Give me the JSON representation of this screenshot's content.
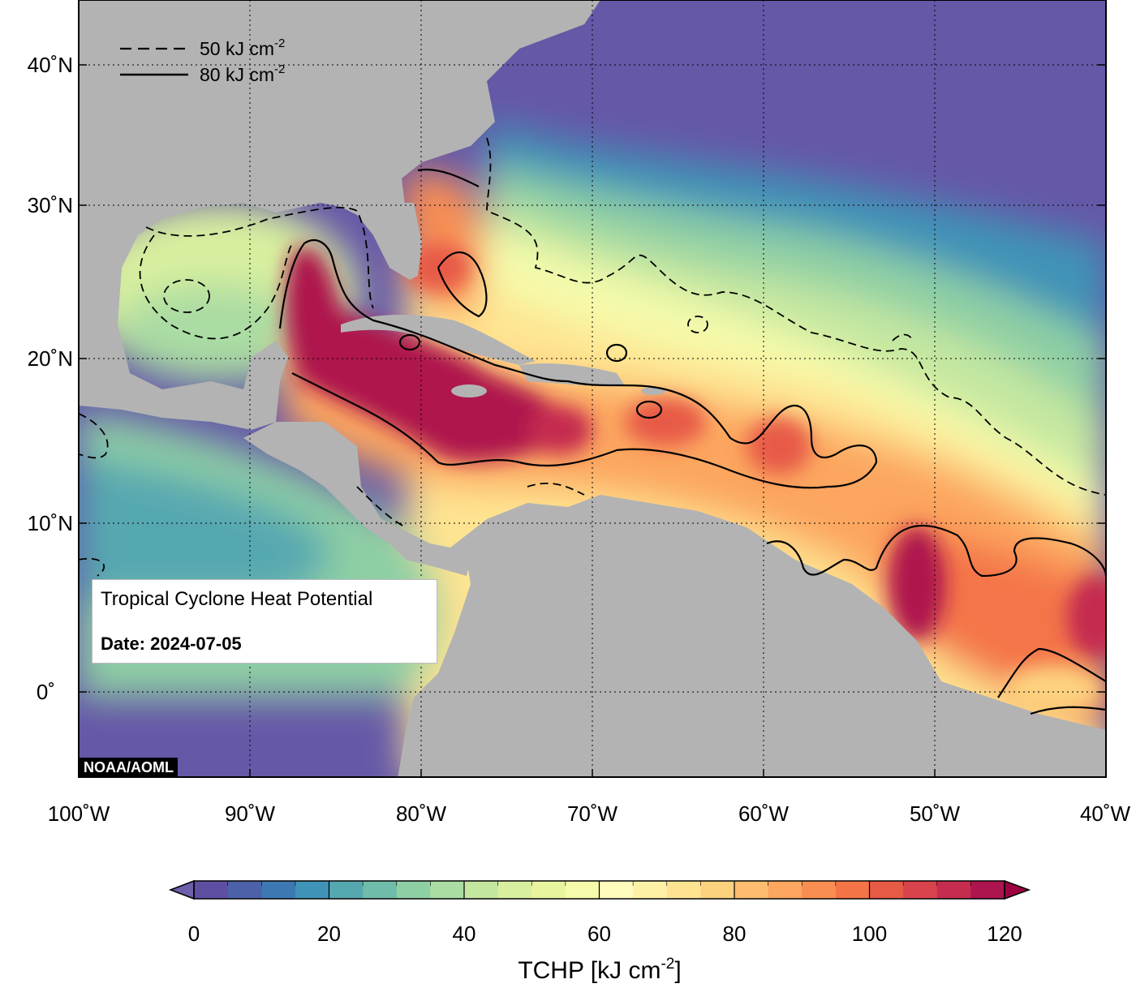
{
  "title": "Tropical Cyclone Heat Potential",
  "date_label": "Date: 2024-07-05",
  "credit": "NOAA/AOML",
  "legend": {
    "dashed_label": "50 kJ cm",
    "dashed_exp": "-2",
    "solid_label": "80 kJ cm",
    "solid_exp": "-2"
  },
  "lat_labels": [
    "40˚N",
    "30˚N",
    "20˚N",
    "10˚N",
    "0˚"
  ],
  "lon_labels": [
    "100˚W",
    "90˚W",
    "80˚W",
    "70˚W",
    "60˚W",
    "50˚W",
    "40˚W"
  ],
  "colorbar": {
    "title_prefix": "TCHP [kJ cm",
    "title_exp": "-2",
    "title_suffix": "]",
    "ticks": [
      "0",
      "20",
      "40",
      "60",
      "80",
      "100",
      "120"
    ],
    "range": [
      0,
      120
    ],
    "step": 5,
    "colors": [
      "#5e4fa2",
      "#4d61a8",
      "#3d78b3",
      "#3f93b7",
      "#56a8b0",
      "#70bcaa",
      "#8ecfa4",
      "#aadca3",
      "#c4e7a0",
      "#d8ef9f",
      "#e8f59e",
      "#f5fbab",
      "#fffbbd",
      "#fef1a6",
      "#fee491",
      "#fdd27f",
      "#fdbd6e",
      "#fca65f",
      "#f98e52",
      "#f47448",
      "#e75a46",
      "#d8434d",
      "#c52c4f",
      "#ae144e"
    ],
    "under_color": "#6f5ea8",
    "over_color": "#9e0142"
  },
  "map": {
    "extent": {
      "lon_min": -100,
      "lon_max": -40,
      "lat_min": -5,
      "lat_max": 44
    },
    "ocean_deep_color": "#6558a7",
    "land_color": "#b3b3b3"
  }
}
